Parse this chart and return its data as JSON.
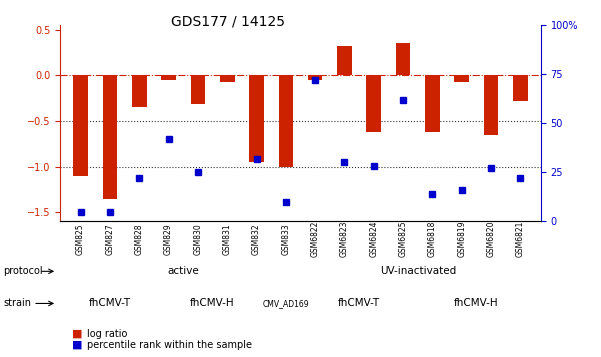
{
  "title": "GDS177 / 14125",
  "samples": [
    "GSM825",
    "GSM827",
    "GSM828",
    "GSM829",
    "GSM830",
    "GSM831",
    "GSM832",
    "GSM833",
    "GSM6822",
    "GSM6823",
    "GSM6824",
    "GSM6825",
    "GSM6818",
    "GSM6819",
    "GSM6820",
    "GSM6821"
  ],
  "log_ratio": [
    -1.1,
    -1.35,
    -0.35,
    -0.05,
    -0.32,
    -0.07,
    -0.95,
    -1.0,
    -0.05,
    0.32,
    -0.62,
    0.35,
    -0.62,
    -0.07,
    -0.65,
    -0.28
  ],
  "percentile": [
    5,
    5,
    22,
    42,
    25,
    null,
    32,
    10,
    72,
    30,
    28,
    62,
    14,
    16,
    27,
    22
  ],
  "protocol_groups": [
    {
      "label": "active",
      "start": 0,
      "end": 7,
      "color": "#aaffaa"
    },
    {
      "label": "UV-inactivated",
      "start": 8,
      "end": 15,
      "color": "#55dd55"
    }
  ],
  "strain_groups": [
    {
      "label": "fhCMV-T",
      "start": 0,
      "end": 2,
      "color": "#ffaaff"
    },
    {
      "label": "fhCMV-H",
      "start": 3,
      "end": 6,
      "color": "#ff88ff"
    },
    {
      "label": "CMV_AD169",
      "start": 7,
      "end": 7,
      "color": "#ee55ee"
    },
    {
      "label": "fhCMV-T",
      "start": 8,
      "end": 11,
      "color": "#ffaaff"
    },
    {
      "label": "fhCMV-H",
      "start": 12,
      "end": 15,
      "color": "#ff88ff"
    }
  ],
  "bar_color": "#cc2200",
  "dot_color": "#0000cc",
  "ylim_left": [
    -1.6,
    0.55
  ],
  "ylim_right": [
    0,
    100
  ],
  "hline_color": "#cc2200",
  "dotted_line_color": "#333333",
  "bg_color": "#ffffff",
  "tick_label_fontsize": 6.5,
  "title_fontsize": 10
}
